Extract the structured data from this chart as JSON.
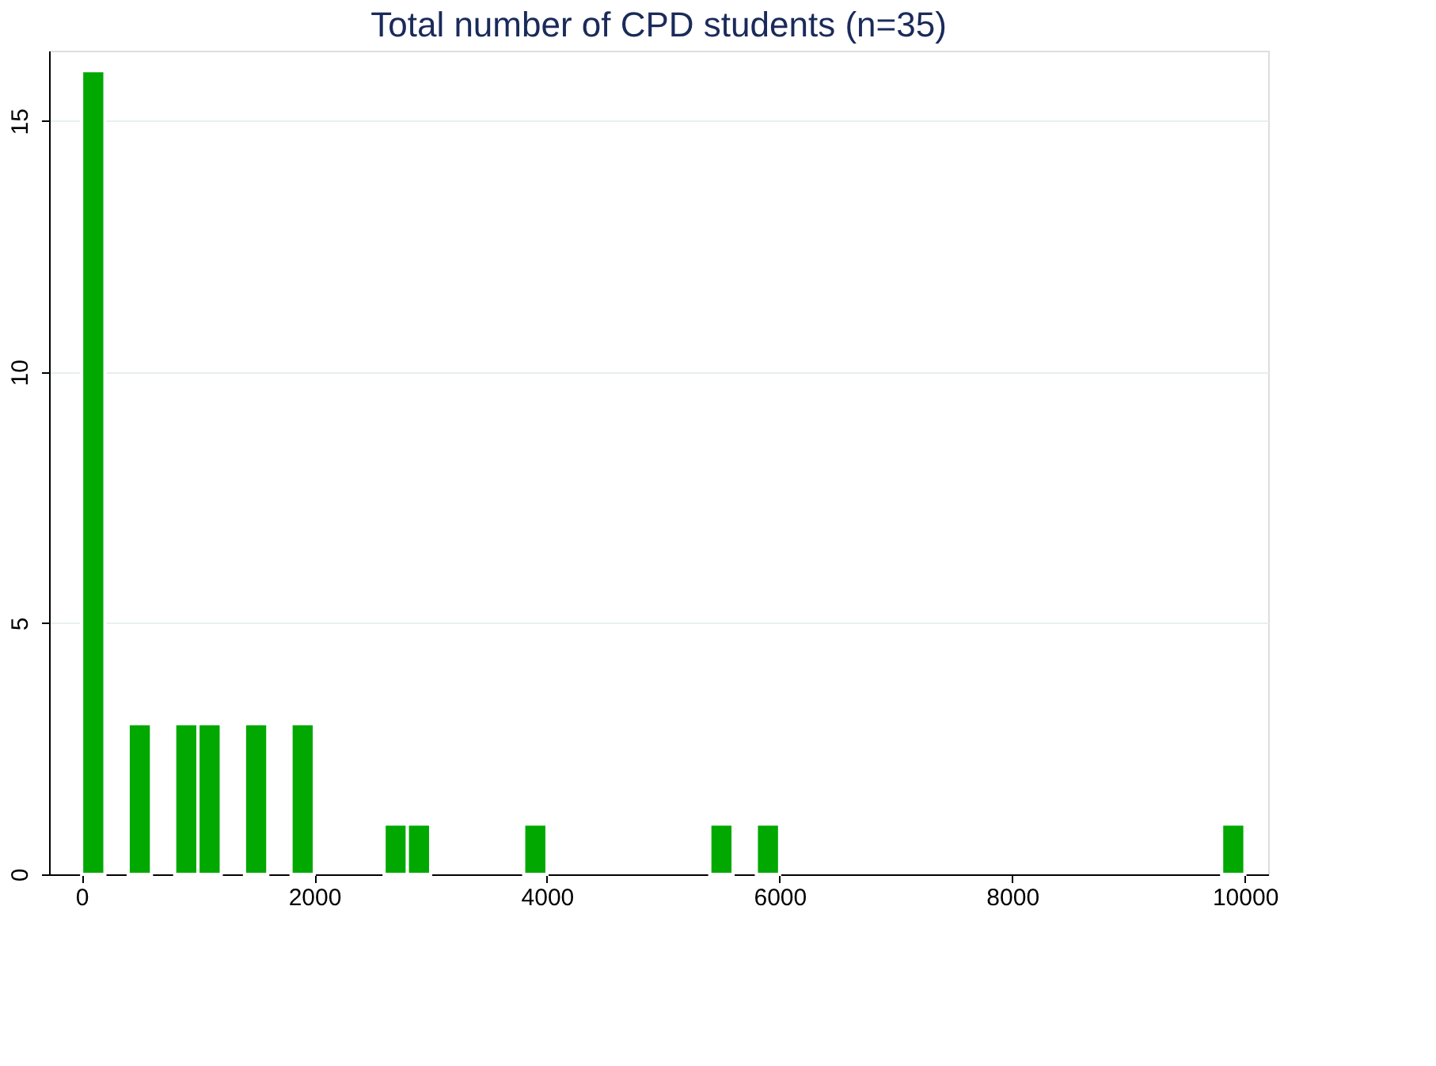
{
  "chart_data": {
    "type": "histogram",
    "title": "Total number of CPD students (n=35)",
    "bins": [
      0,
      200,
      400,
      600,
      800,
      1000,
      1200,
      1400,
      1600,
      1800,
      2000,
      2200,
      2400,
      2600,
      2800,
      3000,
      3200,
      3400,
      3600,
      3800,
      4000,
      4200,
      4400,
      4600,
      4800,
      5000,
      5200,
      5400,
      5600,
      5800,
      6000,
      6200,
      6400,
      6600,
      6800,
      7000,
      7200,
      7400,
      7600,
      7800,
      8000,
      8200,
      8400,
      8600,
      8800,
      9000,
      9200,
      9400,
      9600,
      9800,
      10000
    ],
    "values": [
      16,
      0,
      3,
      0,
      3,
      3,
      0,
      3,
      0,
      3,
      0,
      0,
      0,
      1,
      1,
      0,
      0,
      0,
      0,
      1,
      0,
      0,
      0,
      0,
      0,
      0,
      0,
      1,
      0,
      1,
      0,
      0,
      0,
      0,
      0,
      0,
      0,
      0,
      0,
      0,
      0,
      0,
      0,
      0,
      0,
      0,
      0,
      0,
      0,
      1
    ],
    "color": "#00a800",
    "xlim": [
      -280,
      10200
    ],
    "xticks": [
      0,
      2000,
      4000,
      6000,
      8000,
      10000
    ],
    "ylim": [
      0,
      16.4
    ],
    "yticks": [
      0,
      5,
      10,
      15
    ],
    "grid": "y"
  }
}
